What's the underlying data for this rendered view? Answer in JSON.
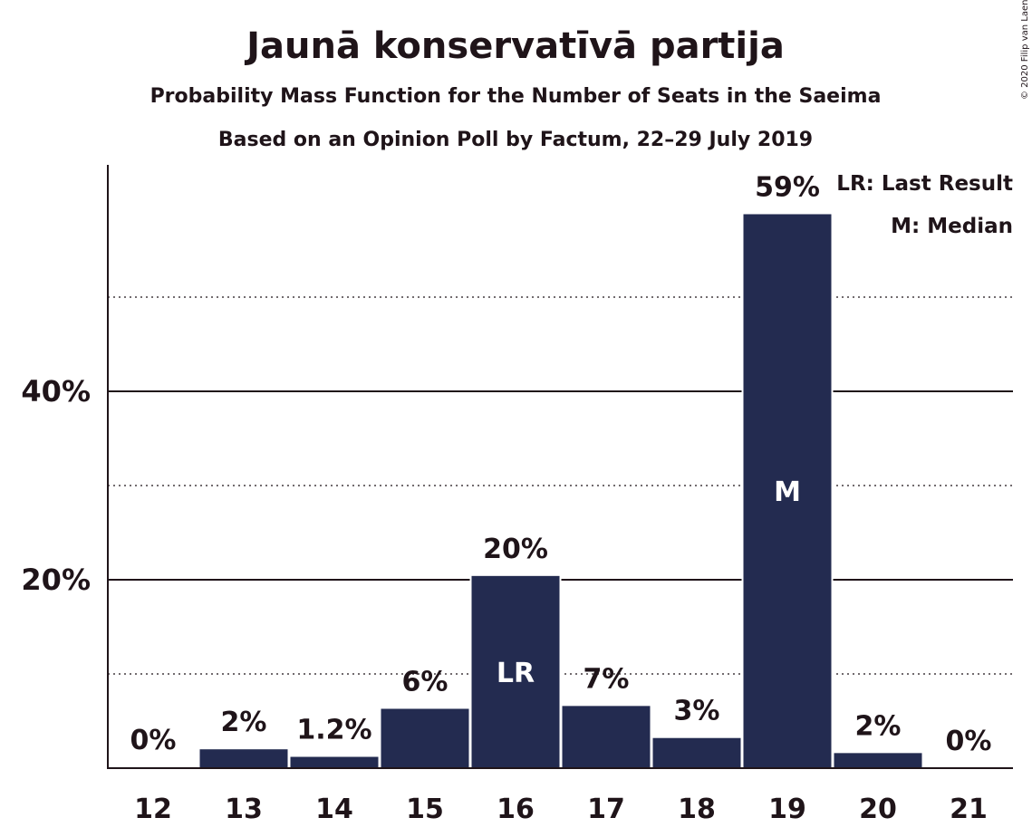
{
  "copyright": "© 2020 Filip van Laenen",
  "legend": {
    "last_result": "LR: Last Result",
    "median": "M: Median"
  },
  "colors": {
    "bar": "#232b50",
    "text": "#1f1419",
    "background": "#ffffff"
  },
  "chart_data": {
    "type": "bar",
    "title": "Jaunā konservatīvā partija",
    "subtitle": "Probability Mass Function for the Number of Seats in the Saeima",
    "subtitle2": "Based on an Opinion Poll by Factum, 22–29 July 2019",
    "xlabel": "",
    "ylabel": "",
    "categories": [
      "12",
      "13",
      "14",
      "15",
      "16",
      "17",
      "18",
      "19",
      "20",
      "21"
    ],
    "values": [
      0.1,
      2,
      1.2,
      6.3,
      20.4,
      6.6,
      3.2,
      58.8,
      1.6,
      0
    ],
    "data_labels": [
      "0%",
      "2%",
      "1.2%",
      "6%",
      "20%",
      "7%",
      "3%",
      "59%",
      "2%",
      "0%"
    ],
    "bar_markers": {
      "16": "LR",
      "19": "M"
    },
    "ylim": [
      0,
      64
    ],
    "yticks_major": [
      20,
      40
    ],
    "ytick_labels": [
      "20%",
      "40%"
    ],
    "yticks_minor": [
      10,
      30,
      50
    ],
    "grid": true,
    "legend_position": "top-right"
  }
}
